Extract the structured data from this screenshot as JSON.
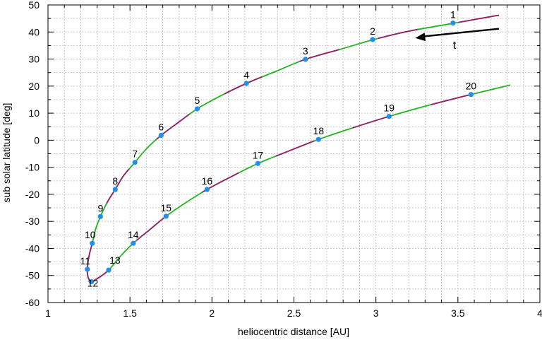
{
  "chart_data": {
    "type": "line",
    "title": "",
    "xlabel": "heliocentric distance [AU]",
    "ylabel": "sub solar latitude [deg]",
    "xlim": [
      1,
      4
    ],
    "ylim": [
      -60,
      50
    ],
    "xticks": [
      "1",
      "1.5",
      "2",
      "2.5",
      "3",
      "3.5",
      "4"
    ],
    "yticks": [
      "-60",
      "-50",
      "-40",
      "-30",
      "-20",
      "-10",
      "0",
      "10",
      "20",
      "30",
      "40",
      "50"
    ],
    "grid": true,
    "annotation": {
      "text": "t",
      "arrow": {
        "from": [
          3.75,
          41.2
        ],
        "to": [
          3.24,
          37.8
        ]
      }
    },
    "curve": {
      "colors": [
        "#21b521",
        "#9b1c6e"
      ],
      "inbound": [
        [
          3.75,
          46.2
        ],
        [
          3.6,
          44.6
        ],
        [
          3.47,
          43.2
        ],
        [
          3.2,
          40.3
        ],
        [
          2.98,
          37.1
        ],
        [
          2.8,
          33.9
        ],
        [
          2.57,
          29.9
        ],
        [
          2.4,
          25.7
        ],
        [
          2.21,
          21.0
        ],
        [
          2.05,
          16.3
        ],
        [
          1.91,
          11.6
        ],
        [
          1.8,
          6.8
        ],
        [
          1.69,
          1.8
        ],
        [
          1.6,
          -3.2
        ],
        [
          1.53,
          -8.2
        ],
        [
          1.46,
          -13.2
        ],
        [
          1.41,
          -18.2
        ],
        [
          1.36,
          -23.1
        ],
        [
          1.32,
          -28.2
        ],
        [
          1.29,
          -33.0
        ],
        [
          1.27,
          -38.1
        ],
        [
          1.25,
          -42.9
        ],
        [
          1.24,
          -47.7
        ],
        [
          1.245,
          -50.8
        ],
        [
          1.265,
          -52.3
        ]
      ],
      "outbound": [
        [
          1.265,
          -52.3
        ],
        [
          1.31,
          -50.8
        ],
        [
          1.37,
          -48.0
        ],
        [
          1.44,
          -43.0
        ],
        [
          1.52,
          -38.1
        ],
        [
          1.62,
          -33.1
        ],
        [
          1.72,
          -28.1
        ],
        [
          1.84,
          -23.1
        ],
        [
          1.97,
          -18.2
        ],
        [
          2.12,
          -13.4
        ],
        [
          2.28,
          -8.6
        ],
        [
          2.46,
          -4.2
        ],
        [
          2.65,
          0.3
        ],
        [
          2.86,
          4.6
        ],
        [
          3.08,
          8.8
        ],
        [
          3.32,
          12.9
        ],
        [
          3.58,
          16.9
        ],
        [
          3.82,
          20.4
        ]
      ]
    },
    "points": [
      {
        "label": "1",
        "x": 3.47,
        "y": 43.3
      },
      {
        "label": "2",
        "x": 2.98,
        "y": 37.2
      },
      {
        "label": "3",
        "x": 2.57,
        "y": 29.9
      },
      {
        "label": "4",
        "x": 2.21,
        "y": 21.0
      },
      {
        "label": "5",
        "x": 1.91,
        "y": 11.6
      },
      {
        "label": "6",
        "x": 1.69,
        "y": 1.8
      },
      {
        "label": "7",
        "x": 1.53,
        "y": -8.2
      },
      {
        "label": "8",
        "x": 1.41,
        "y": -18.2
      },
      {
        "label": "9",
        "x": 1.32,
        "y": -28.2
      },
      {
        "label": "10",
        "x": 1.27,
        "y": -38.1
      },
      {
        "label": "11",
        "x": 1.24,
        "y": -47.7
      },
      {
        "label": "12",
        "x": 1.265,
        "y": -52.3
      },
      {
        "label": "13",
        "x": 1.37,
        "y": -48.0
      },
      {
        "label": "14",
        "x": 1.52,
        "y": -38.1
      },
      {
        "label": "15",
        "x": 1.72,
        "y": -28.1
      },
      {
        "label": "16",
        "x": 1.97,
        "y": -18.2
      },
      {
        "label": "17",
        "x": 2.28,
        "y": -8.6
      },
      {
        "label": "18",
        "x": 2.65,
        "y": 0.3
      },
      {
        "label": "19",
        "x": 3.08,
        "y": 8.8
      },
      {
        "label": "20",
        "x": 3.58,
        "y": 16.9
      }
    ],
    "point_color": "#1f8ff0"
  }
}
